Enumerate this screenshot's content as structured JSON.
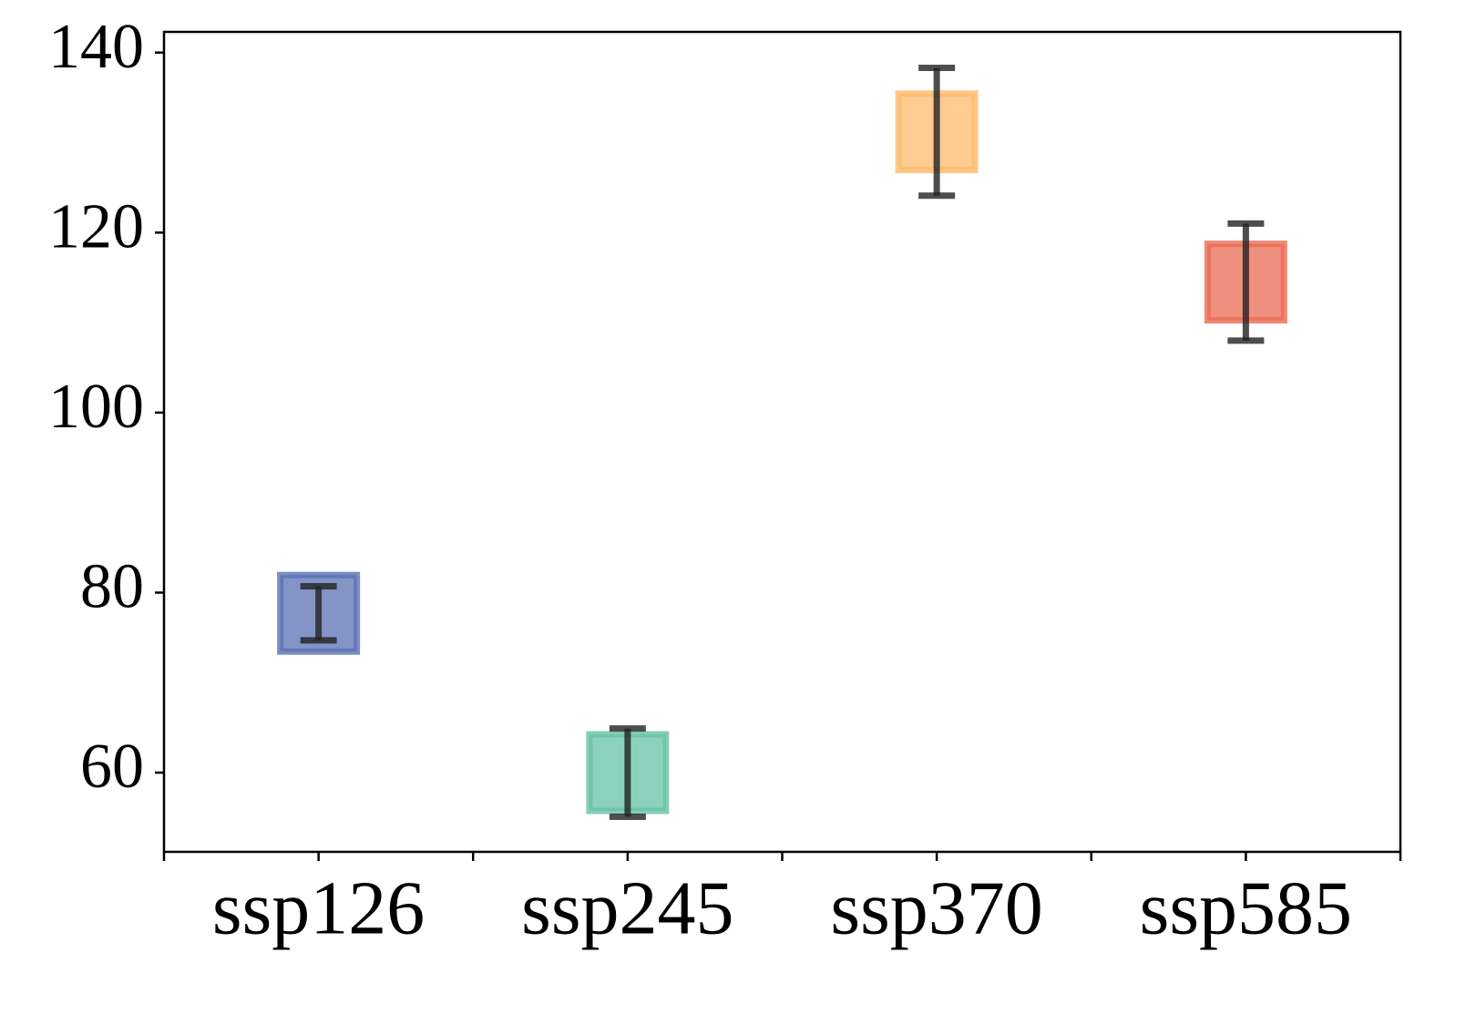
{
  "chart_data": {
    "type": "errorbox",
    "categories": [
      "ssp126",
      "ssp245",
      "ssp370",
      "ssp585"
    ],
    "values": [
      77.7,
      60.0,
      131.2,
      114.5
    ],
    "errors": [
      3.0,
      4.9,
      7.1,
      6.5
    ],
    "colors": [
      "#5b70b4",
      "#66c2a5",
      "#fdbb6c",
      "#ea6a52"
    ],
    "ylim": [
      51.2,
      142.3
    ],
    "yticks": [
      60,
      80,
      100,
      120,
      140
    ]
  }
}
